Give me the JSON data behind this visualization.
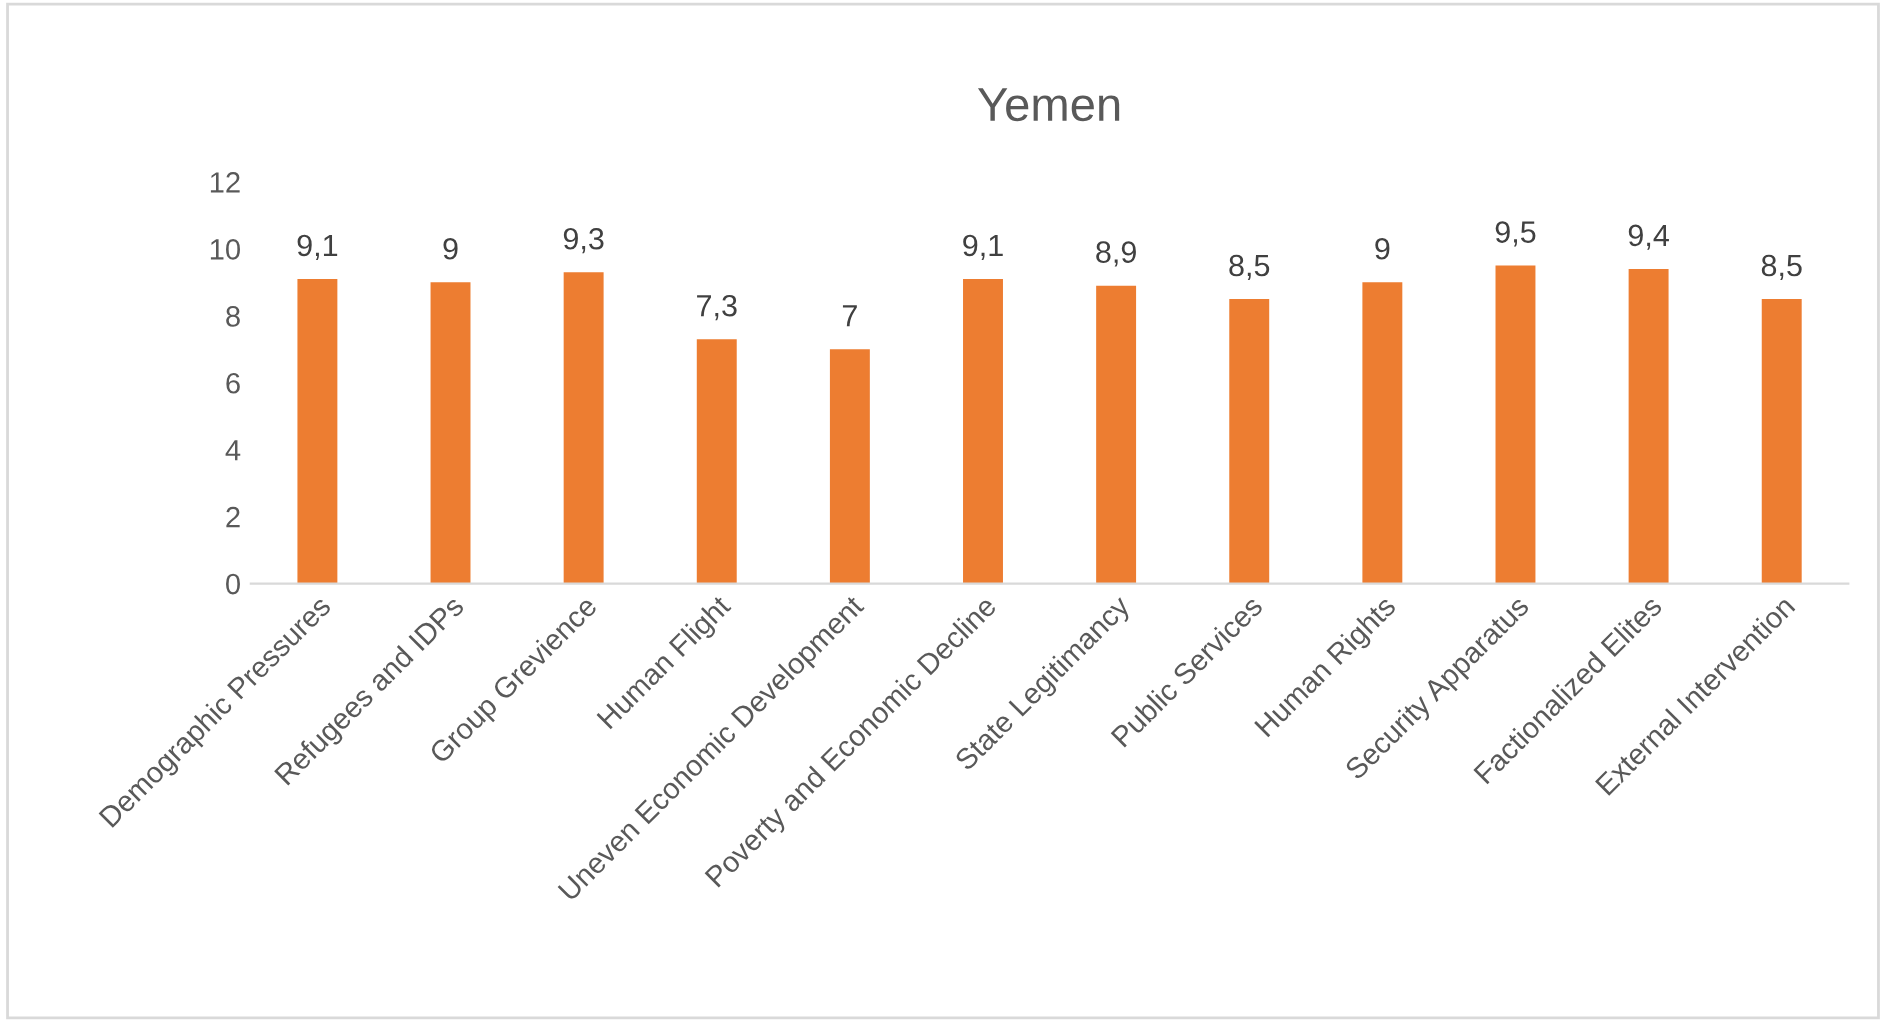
{
  "chart_data": {
    "type": "bar",
    "title": "Yemen",
    "categories": [
      "Demographic Pressures",
      "Refugees and IDPs",
      "Group Grevience",
      "Human Flight",
      "Uneven Economic Development",
      "Poverty and Economic Decline",
      "State Legitimancy",
      "Public Services",
      "Human Rights",
      "Security Apparatus",
      "Factionalized Elites",
      "External Intervention"
    ],
    "values": [
      9.1,
      9,
      9.3,
      7.3,
      7,
      9.1,
      8.9,
      8.5,
      9,
      9.5,
      9.4,
      8.5
    ],
    "value_labels": [
      "9,1",
      "9",
      "9,3",
      "7,3",
      "7",
      "9,1",
      "8,9",
      "8,5",
      "9",
      "9,5",
      "9,4",
      "8,5"
    ],
    "color": "#ed7d31",
    "ylim": [
      0,
      12
    ],
    "yticks": [
      0,
      2,
      4,
      6,
      8,
      10,
      12
    ],
    "grid": false,
    "legend": false
  }
}
